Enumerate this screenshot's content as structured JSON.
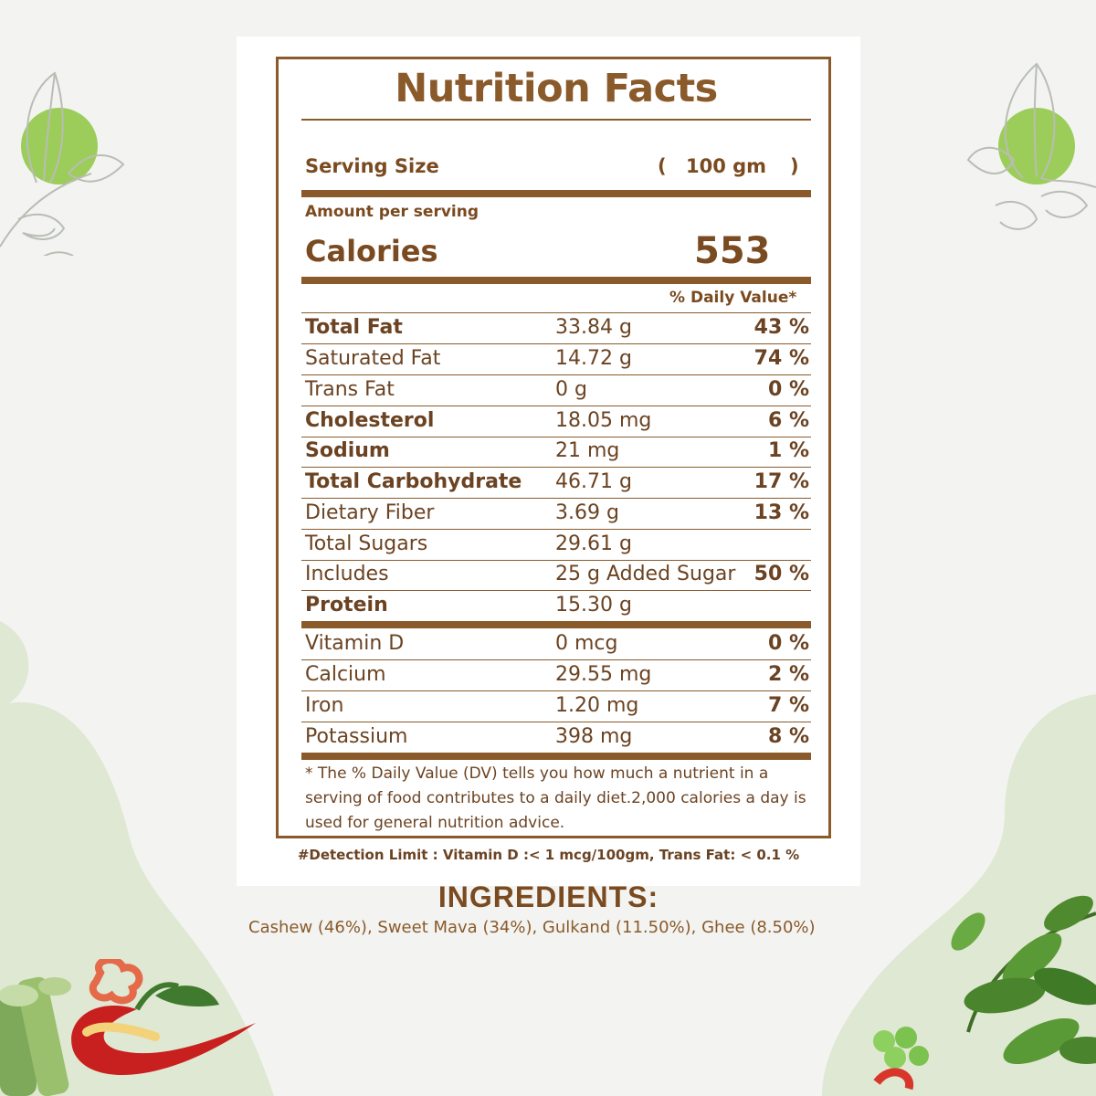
{
  "colors": {
    "label_brown": "#8a5a2b",
    "text_brown": "#6b4322",
    "accent_green": "#8cc63f",
    "blob_green": "#dfe8d3",
    "chili_red": "#c8201f"
  },
  "label": {
    "title": "Nutrition Facts",
    "serving_label": "Serving Size",
    "serving_open": "(",
    "serving_value": "100 gm",
    "serving_close": ")",
    "amount_per_serving": "Amount per serving",
    "calories_label": "Calories",
    "calories_value": "553",
    "dv_header": "% Daily Value*",
    "nutrients": [
      {
        "name": "Total Fat",
        "amount": "33.84 g",
        "dv": "43 %"
      },
      {
        "name": "Saturated Fat",
        "amount": "14.72 g",
        "dv": "74 %"
      },
      {
        "name": "Trans Fat",
        "amount": "0 g",
        "dv": "0 %"
      },
      {
        "name": "Cholesterol",
        "amount": "18.05 mg",
        "dv": "6 %"
      },
      {
        "name": "Sodium",
        "amount": "21 mg",
        "dv": "1 %"
      },
      {
        "name": "Total Carbohydrate",
        "amount": "46.71 g",
        "dv": "17 %"
      },
      {
        "name": "Dietary Fiber",
        "amount": "3.69 g",
        "dv": "13 %"
      },
      {
        "name": "Total Sugars",
        "amount": "29.61 g",
        "dv": ""
      },
      {
        "name": "Includes",
        "amount": "25 g Added Sugar",
        "dv": "50 %"
      },
      {
        "name": "Protein",
        "amount": "15.30 g",
        "dv": ""
      }
    ],
    "vitamins": [
      {
        "name": "Vitamin D",
        "amount": "0 mcg",
        "dv": "0 %"
      },
      {
        "name": "Calcium",
        "amount": "29.55 mg",
        "dv": "2 %"
      },
      {
        "name": "Iron",
        "amount": "1.20 mg",
        "dv": "7 %"
      },
      {
        "name": "Potassium",
        "amount": "398 mg",
        "dv": "8 %"
      }
    ],
    "footnote": "* The % Daily Value (DV) tells you how much a nutrient in a serving of food contributes to a daily diet.2,000 calories a day is used for general nutrition advice."
  },
  "detection_limit": "#Detection Limit : Vitamin D :< 1 mcg/100gm, Trans Fat: < 0.1 %",
  "ingredients": {
    "title": "INGREDIENTS:",
    "text": "Cashew (46%), Sweet Mava (34%), Gulkand (11.50%), Ghee (8.50%)"
  },
  "decorations": {
    "left_leaf_icon": "leaf-sketch-icon",
    "right_leaf_icon": "leaf-sketch-icon",
    "bottom_left": "chili-pepper-vegetables-image",
    "bottom_right": "greens-peas-image"
  }
}
